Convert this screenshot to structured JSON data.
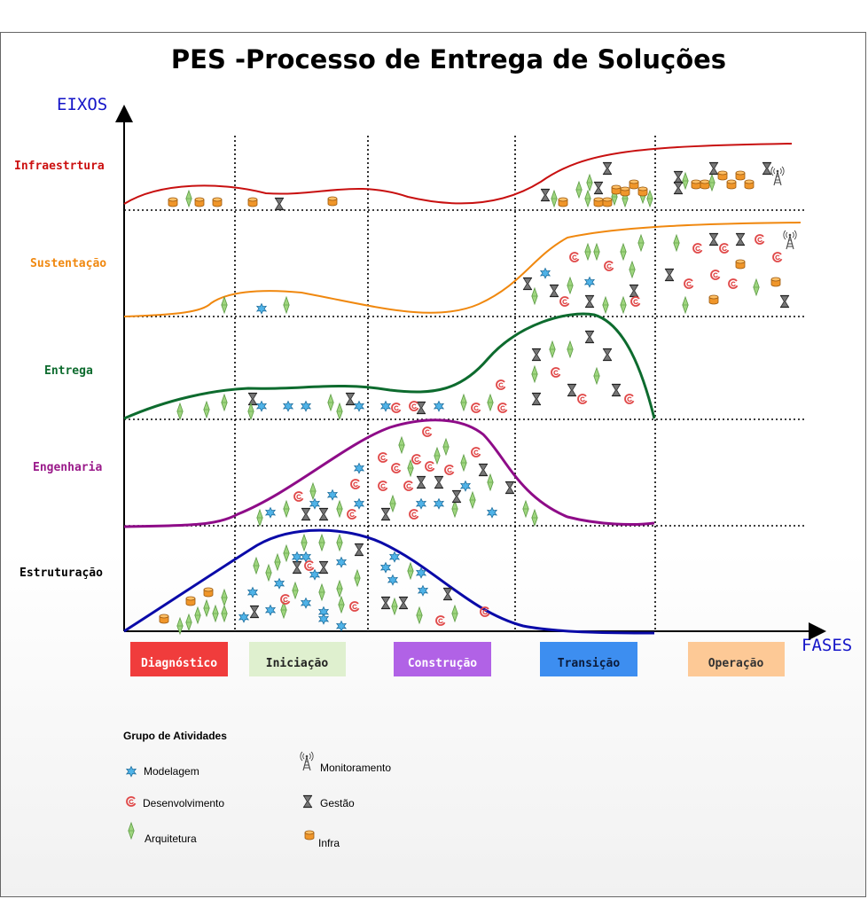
{
  "title": "PES -Processo de Entrega de Soluções",
  "y_axis_title": "EIXOS",
  "x_axis_title": "FASES",
  "axes": [
    {
      "label": "Infraestrtura",
      "color": "#cc1111"
    },
    {
      "label": "Sustentação",
      "color": "#f0880f"
    },
    {
      "label": "Entrega",
      "color": "#0d6b2e"
    },
    {
      "label": "Engenharia",
      "color": "#9a1a8a"
    },
    {
      "label": "Estruturação",
      "color": "#000000"
    }
  ],
  "phases": [
    {
      "label": "Diagnóstico",
      "bg": "#f03c3c",
      "fg": "#ffffff"
    },
    {
      "label": "Iniciação",
      "bg": "#dff0cf",
      "fg": "#222222"
    },
    {
      "label": "Construção",
      "bg": "#b162e6",
      "fg": "#ffffff"
    },
    {
      "label": "Transição",
      "bg": "#3d8ef0",
      "fg": "#0b1b3a"
    },
    {
      "label": "Operação",
      "bg": "#fdc996",
      "fg": "#333333"
    }
  ],
  "curves": [
    {
      "axis": "Infraestrtura",
      "color": "#c81010"
    },
    {
      "axis": "Sustentação",
      "color": "#f0880f"
    },
    {
      "axis": "Entrega",
      "color": "#0d6b2e"
    },
    {
      "axis": "Engenharia",
      "color": "#8e0c88"
    },
    {
      "axis": "Estruturação",
      "color": "#0a0aa8"
    }
  ],
  "legend": {
    "title": "Grupo de Atividades",
    "items": [
      {
        "label": "Modelagem",
        "icon": "star-burst-icon"
      },
      {
        "label": "Desenvolvimento",
        "icon": "cycle-arrow-icon"
      },
      {
        "label": "Arquitetura",
        "icon": "diamond-icon"
      },
      {
        "label": "Monitoramento",
        "icon": "antenna-tower-icon"
      },
      {
        "label": "Gestão",
        "icon": "hourglass-icon"
      },
      {
        "label": "Infra",
        "icon": "database-cylinder-icon"
      }
    ]
  },
  "icon_colors": {
    "modelagem": "#4fb3e8",
    "desenvolvimento": "#e04848",
    "arquitetura": "#8cce6c",
    "gestao": "#555555",
    "infra": "#f0962a"
  }
}
